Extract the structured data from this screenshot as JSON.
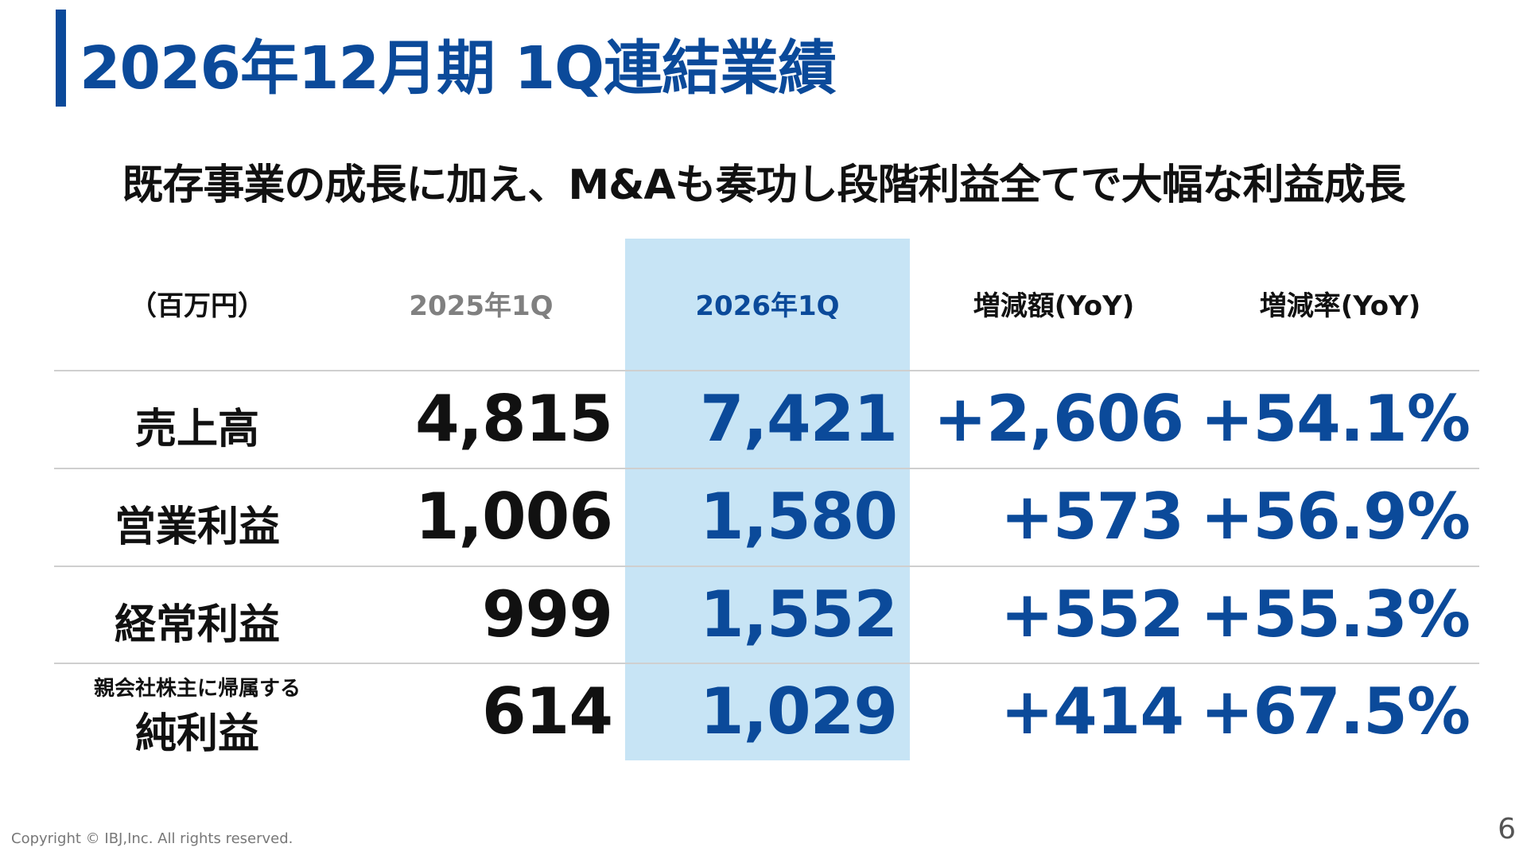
{
  "title": "2026年12月期 1Q連結業績",
  "subtitle": "既存事業の成長に加え、M&Aも奏功し段階利益全てで大幅な利益成長",
  "table": {
    "headers": {
      "unit": "（百万円）",
      "prev": "2025年1Q",
      "curr": "2026年1Q",
      "diff": "増減額(YoY)",
      "rate": "増減率(YoY)"
    },
    "rows": [
      {
        "label": "売上高",
        "prev": "4,815",
        "curr": "7,421",
        "diff": "+2,606",
        "rate": "+54.1%"
      },
      {
        "label": "営業利益",
        "prev": "1,006",
        "curr": "1,580",
        "diff": "+573",
        "rate": "+56.9%"
      },
      {
        "label": "経常利益",
        "prev": "999",
        "curr": "1,552",
        "diff": "+552",
        "rate": "+55.3%"
      },
      {
        "label_sub": "親会社株主に帰属する",
        "label": "純利益",
        "prev": "614",
        "curr": "1,029",
        "diff": "+414",
        "rate": "+67.5%"
      }
    ]
  },
  "footer": {
    "copyright": "Copyright © IBJ,Inc. All rights reserved.",
    "page": "6"
  },
  "colors": {
    "accent": "#0b4a9a",
    "highlight": "#c7e4f5"
  }
}
